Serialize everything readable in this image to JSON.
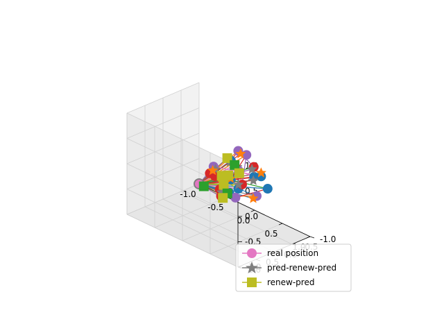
{
  "chart_data": {
    "type": "line3d",
    "title": "",
    "xlabel": "",
    "ylabel": "",
    "zlabel": "",
    "xlim": [
      -1.0,
      1.0
    ],
    "ylim": [
      -1.0,
      1.0
    ],
    "zlim": [
      -1.0,
      1.0
    ],
    "x_ticks": [
      "-1.0",
      "-0.5",
      "0.0",
      "0.5",
      "1.0"
    ],
    "y_ticks": [
      "-1.0",
      "-0.5",
      "0.0",
      "0.5",
      "1.0"
    ],
    "z_ticks": [
      "-1.0",
      "-0.5",
      "0.0",
      "0.5",
      "1.0"
    ],
    "grid": true,
    "legend_position": "lower-right",
    "legend": [
      {
        "label": "real position",
        "color": "#e377c2",
        "marker": "circle"
      },
      {
        "label": "pred-renew-pred",
        "color": "#7f7f7f",
        "marker": "star"
      },
      {
        "label": "renew-pred",
        "color": "#bcbd22",
        "marker": "square"
      }
    ],
    "hub_point": {
      "x": -1.0,
      "y": -1.0,
      "z": -1.0
    },
    "series_colors": [
      "#1f77b4",
      "#ff7f0e",
      "#2ca02c",
      "#d62728",
      "#9467bd",
      "#8c564b",
      "#e377c2",
      "#7f7f7f",
      "#bcbd22"
    ],
    "real_position_points": [
      [
        0.45,
        0.35,
        0.62
      ],
      [
        0.55,
        0.3,
        0.85
      ],
      [
        0.7,
        0.1,
        0.55
      ],
      [
        0.8,
        0.05,
        0.4
      ],
      [
        0.3,
        0.6,
        0.5
      ],
      [
        0.2,
        0.55,
        0.3
      ],
      [
        0.65,
        0.45,
        0.2
      ],
      [
        0.85,
        0.25,
        0.1
      ],
      [
        0.5,
        0.7,
        0.05
      ],
      [
        0.35,
        0.2,
        0.15
      ],
      [
        0.6,
        0.15,
        0.75
      ],
      [
        0.75,
        0.5,
        0.35
      ],
      [
        0.9,
        0.4,
        0.55
      ],
      [
        0.4,
        0.05,
        0.3
      ],
      [
        0.25,
        0.35,
        -0.05
      ],
      [
        0.55,
        0.55,
        0.1
      ],
      [
        0.65,
        0.8,
        0.25
      ],
      [
        0.1,
        0.25,
        0.1
      ],
      [
        0.95,
        0.1,
        0.25
      ],
      [
        0.5,
        0.3,
        -0.1
      ]
    ],
    "pred_renew_pred_points": [
      [
        0.4,
        0.3,
        0.55
      ],
      [
        0.58,
        0.28,
        0.8
      ],
      [
        0.68,
        0.12,
        0.5
      ],
      [
        0.78,
        0.02,
        0.45
      ],
      [
        0.32,
        0.58,
        0.45
      ],
      [
        0.22,
        0.5,
        0.35
      ],
      [
        0.62,
        0.4,
        0.25
      ],
      [
        0.82,
        0.3,
        0.05
      ],
      [
        0.48,
        0.65,
        0.1
      ],
      [
        0.38,
        0.25,
        0.2
      ],
      [
        0.92,
        0.45,
        0.5
      ],
      [
        0.42,
        0.08,
        0.25
      ]
    ],
    "renew_pred_points": [
      [
        0.45,
        0.45,
        0.7
      ],
      [
        0.55,
        0.4,
        0.6
      ],
      [
        0.5,
        0.5,
        0.4
      ],
      [
        0.45,
        0.55,
        0.2
      ],
      [
        0.55,
        0.6,
        0.1
      ],
      [
        0.35,
        0.45,
        0.3
      ],
      [
        0.6,
        0.35,
        0.45
      ],
      [
        -0.2,
        0.1,
        -0.3
      ],
      [
        0.5,
        0.65,
        0.0
      ]
    ]
  }
}
